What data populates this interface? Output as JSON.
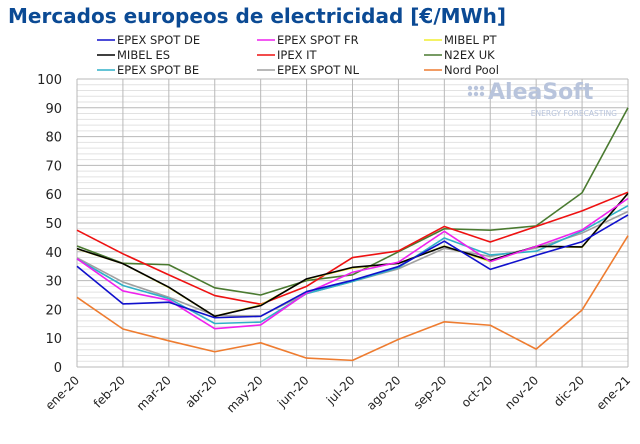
{
  "chart_data": {
    "type": "line",
    "title": "Mercados europeos de electricidad [€/MWh]",
    "xlabel": "",
    "ylabel": "",
    "ylim": [
      0,
      100
    ],
    "yticks": [
      0,
      10,
      20,
      30,
      40,
      50,
      60,
      70,
      80,
      90,
      100
    ],
    "grid": true,
    "legend_position": "top",
    "watermark": "AleaSoft ENERGY FORECASTING",
    "categories": [
      "ene-20",
      "feb-20",
      "mar-20",
      "abr-20",
      "may-20",
      "jun-20",
      "jul-20",
      "ago-20",
      "sep-20",
      "oct-20",
      "nov-20",
      "dic-20",
      "ene-21"
    ],
    "series": [
      {
        "name": "EPEX SPOT DE",
        "color": "#1010cc",
        "values": [
          35.0,
          21.9,
          22.5,
          17.1,
          17.6,
          26.2,
          30.1,
          34.9,
          43.7,
          33.9,
          38.8,
          43.5,
          52.8
        ]
      },
      {
        "name": "EPEX SPOT FR",
        "color": "#ee22ee",
        "values": [
          37.6,
          26.4,
          23.2,
          13.3,
          14.6,
          25.7,
          32.9,
          36.4,
          47.1,
          36.6,
          41.9,
          47.6,
          58.5
        ]
      },
      {
        "name": "MIBEL PT",
        "color": "#f0ee30",
        "values": [
          41.0,
          35.9,
          27.6,
          17.6,
          21.5,
          30.5,
          34.4,
          36.0,
          42.0,
          36.6,
          41.9,
          41.6,
          60.3
        ]
      },
      {
        "name": "MIBEL ES",
        "color": "#000000",
        "values": [
          41.1,
          35.9,
          27.7,
          17.6,
          21.3,
          30.6,
          34.6,
          36.0,
          41.9,
          37.0,
          41.9,
          41.7,
          60.3
        ]
      },
      {
        "name": "IPEX IT",
        "color": "#ee1111",
        "values": [
          47.5,
          39.3,
          32.0,
          24.8,
          21.8,
          28.0,
          38.0,
          40.3,
          48.8,
          43.4,
          48.8,
          54.2,
          60.7
        ]
      },
      {
        "name": "N2EX UK",
        "color": "#4a7a30",
        "values": [
          42.0,
          36.0,
          35.5,
          27.5,
          25.0,
          30.0,
          32.0,
          40.0,
          48.0,
          47.5,
          49.0,
          60.5,
          90.0
        ]
      },
      {
        "name": "EPEX SPOT BE",
        "color": "#30b0c8",
        "values": [
          37.5,
          28.3,
          23.8,
          15.1,
          15.6,
          25.5,
          29.7,
          34.5,
          44.8,
          38.9,
          40.2,
          47.2,
          56.0
        ]
      },
      {
        "name": "EPEX SPOT NL",
        "color": "#a0a0a0",
        "values": [
          37.9,
          29.5,
          24.2,
          17.9,
          17.7,
          25.5,
          29.7,
          34.1,
          41.2,
          38.4,
          41.3,
          46.5,
          54.0
        ]
      },
      {
        "name": "Nord Pool",
        "color": "#ee7c30",
        "values": [
          24.2,
          13.2,
          9.1,
          5.3,
          8.4,
          3.1,
          2.3,
          9.6,
          15.7,
          14.5,
          6.2,
          19.8,
          45.6
        ]
      }
    ]
  }
}
